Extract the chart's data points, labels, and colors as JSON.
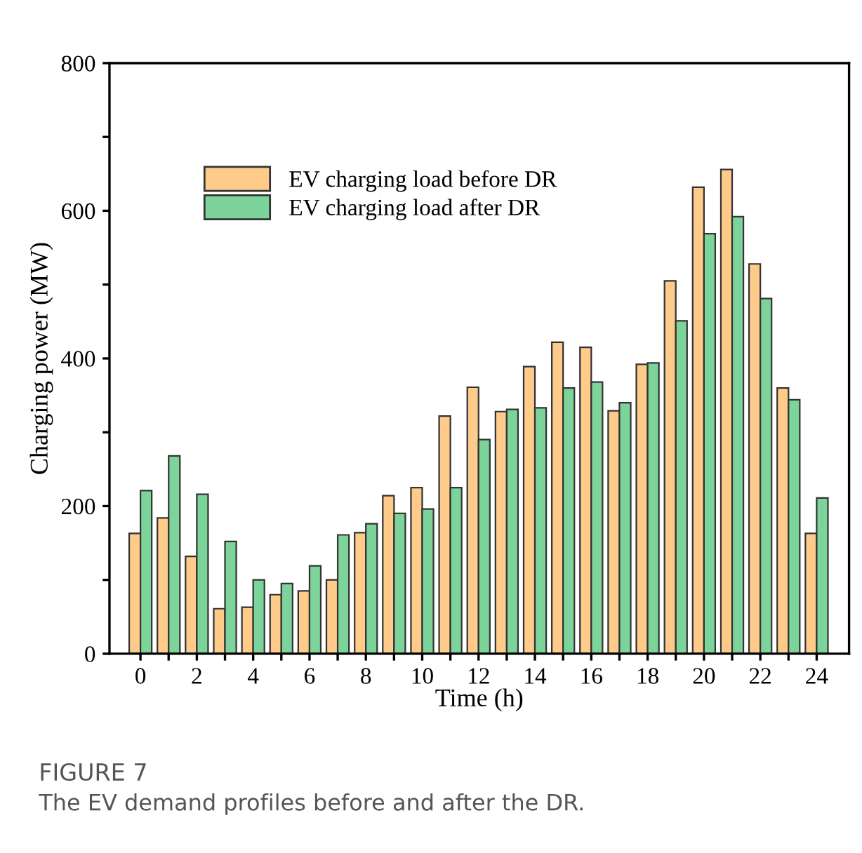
{
  "chart_data": {
    "type": "bar",
    "xlabel": "Time (h)",
    "ylabel": "Charging power (MW)",
    "x": [
      0,
      1,
      2,
      3,
      4,
      5,
      6,
      7,
      8,
      9,
      10,
      11,
      12,
      13,
      14,
      15,
      16,
      17,
      18,
      19,
      20,
      21,
      22,
      23,
      24
    ],
    "series": [
      {
        "name": "EV charging load before DR",
        "color": "#fecb8b",
        "values": [
          163,
          184,
          132,
          61,
          63,
          80,
          85,
          100,
          164,
          214,
          225,
          322,
          361,
          328,
          389,
          422,
          415,
          329,
          392,
          505,
          632,
          656,
          528,
          360,
          163
        ]
      },
      {
        "name": "EV charging load after DR",
        "color": "#7dd49b",
        "values": [
          221,
          268,
          216,
          152,
          100,
          95,
          119,
          161,
          176,
          190,
          196,
          225,
          290,
          331,
          333,
          360,
          368,
          340,
          394,
          451,
          569,
          592,
          481,
          344,
          211
        ]
      }
    ],
    "xlim": [
      -1.1,
      25.15
    ],
    "xticks": [
      0,
      {
        "value": 1,
        "label": null
      },
      2,
      {
        "value": 3,
        "label": null
      },
      4,
      {
        "value": 5,
        "label": null
      },
      6,
      {
        "value": 7,
        "label": null
      },
      8,
      {
        "value": 9,
        "label": null
      },
      10,
      {
        "value": 11,
        "label": null
      },
      12,
      {
        "value": 13,
        "label": null
      },
      14,
      {
        "value": 15,
        "label": null
      },
      16,
      {
        "value": 17,
        "label": null
      },
      18,
      {
        "value": 19,
        "label": null
      },
      20,
      {
        "value": 21,
        "label": null
      },
      22,
      {
        "value": 23,
        "label": null
      },
      24
    ],
    "ylim": [
      0,
      800
    ],
    "yticks": [
      0,
      {
        "value": 100,
        "label": null
      },
      200,
      {
        "value": 300,
        "label": null
      },
      400,
      {
        "value": 500,
        "label": null
      },
      600,
      {
        "value": 700,
        "label": null
      },
      800
    ],
    "grid": false,
    "legend": "top left",
    "annotations": [
      "FIGURE 7",
      "The EV demand profiles before and after the DR."
    ]
  }
}
